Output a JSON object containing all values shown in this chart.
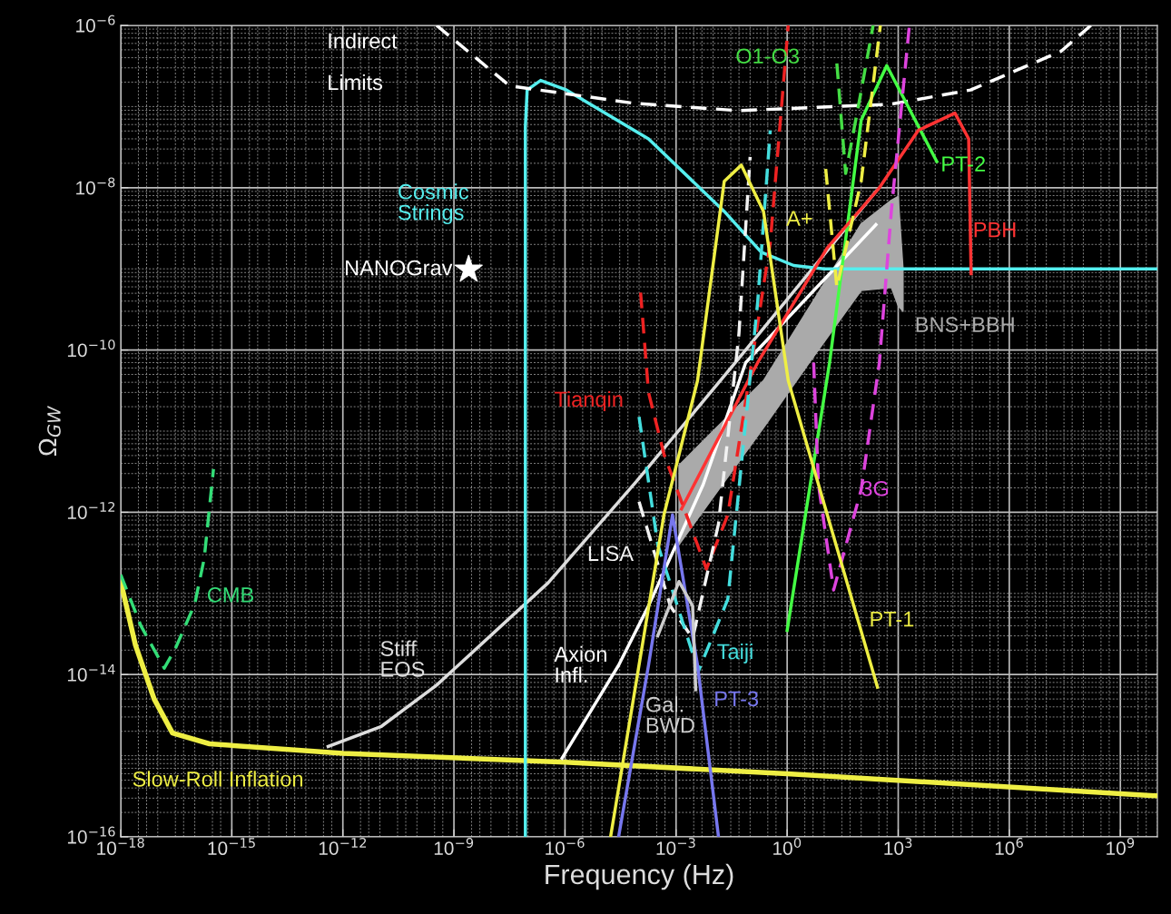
{
  "chart_data": {
    "type": "line",
    "xlabel": "Frequency (Hz)",
    "ylabel": "Ω$_{GW}$",
    "log": "xy",
    "grid": true,
    "legend": false,
    "xlim": [
      1e-18,
      10000000000.0
    ],
    "ylim": [
      1e-16,
      1e-06
    ],
    "xticks": [
      {
        "value": 1e-18,
        "label": "10$^{−18}$"
      },
      {
        "value": 1e-15,
        "label": "10$^{−15}$"
      },
      {
        "value": 1e-12,
        "label": "10$^{−12}$"
      },
      {
        "value": 1e-09,
        "label": "10$^{−9}$"
      },
      {
        "value": 1e-06,
        "label": "10$^{−6}$"
      },
      {
        "value": 0.001,
        "label": "10$^{−3}$"
      },
      {
        "value": 1,
        "label": "10$^{0}$"
      },
      {
        "value": 1000.0,
        "label": "10$^{3}$"
      },
      {
        "value": 1000000.0,
        "label": "10$^{6}$"
      },
      {
        "value": 1000000000.0,
        "label": "10$^{9}$"
      }
    ],
    "yticks": [
      {
        "value": 1e-16,
        "label": "10$^{−16}$"
      },
      {
        "value": 1e-14,
        "label": "10$^{−14}$"
      },
      {
        "value": 1e-12,
        "label": "10$^{−12}$"
      },
      {
        "value": 1e-10,
        "label": "10$^{−10}$"
      },
      {
        "value": 1e-08,
        "label": "10$^{−8}$"
      },
      {
        "value": 1e-06,
        "label": "10$^{−6}$"
      }
    ],
    "series": [
      {
        "name": "Slow-Roll Inflation",
        "color": "#eeee44",
        "line_style": "solid",
        "x": [
          1e-18,
          2.5e-18,
          8e-18,
          2.5e-17,
          2.5e-16,
          1e-12,
          1e-06,
          1,
          10000000000.0
        ],
        "values": [
          1.4e-13,
          2.3e-14,
          5e-15,
          1.9e-15,
          1.4e-15,
          1.07e-15,
          8.3e-16,
          6e-16,
          3.2e-16
        ]
      },
      {
        "name": "CMB",
        "color": "#33dd77",
        "line_style": "dashed",
        "x": [
          1e-18,
          3.5e-18,
          1.5e-17,
          3e-17,
          1e-16,
          1.8e-16,
          3.2e-16
        ],
        "values": [
          1.7e-13,
          4e-14,
          1.2e-14,
          2.1e-14,
          7.4e-14,
          2.7e-13,
          3.4e-12
        ]
      },
      {
        "name": "Stiff EOS",
        "color": "#dddddd",
        "line_style": "solid",
        "x": [
          4e-13,
          1.1e-11,
          3.4e-10,
          3.5e-07,
          8.5e-05,
          0.04,
          250
        ],
        "values": [
          1.3e-15,
          2.3e-15,
          7.4e-15,
          1.35e-13,
          2.4e-12,
          7e-11,
          9e-09
        ]
      },
      {
        "name": "Axion Infl.",
        "color": "#ffffff",
        "line_style": "solid",
        "x": [
          8.3e-07,
          2.8e-05,
          0.00018,
          0.0054,
          0.076,
          250
        ],
        "values": [
          9.3e-16,
          1.3e-14,
          7e-14,
          2.2e-12,
          7e-11,
          3.5e-09
        ]
      },
      {
        "name": "Cosmic Strings",
        "color": "#55eeee",
        "line_style": "solid",
        "x": [
          8.5e-08,
          8.5e-08,
          9.5e-08,
          2.2e-07,
          1.1e-06,
          0.00018,
          0.02,
          0.2,
          1.5,
          10,
          10000000000.0
        ],
        "values": [
          1e-16,
          5.6e-08,
          1.6e-07,
          2.1e-07,
          1.6e-07,
          4e-08,
          5.1e-09,
          1.6e-09,
          1.1e-09,
          1e-09,
          1e-09
        ]
      },
      {
        "name": "Indirect Limits",
        "color": "#ffffff",
        "line_style": "dashed",
        "x": [
          3.4e-10,
          3.2e-08,
          7e-05,
          0.05,
          650,
          90000.0,
          25000000.0,
          160000000.0
        ],
        "values": [
          1e-06,
          1.8e-07,
          1.1e-07,
          8.9e-08,
          1.07e-07,
          1.6e-07,
          4.8e-07,
          1e-06
        ]
      },
      {
        "name": "O1-O3",
        "color": "#44dd44",
        "line_style": "dashed",
        "x": [
          22,
          38,
          90,
          210
        ],
        "values": [
          3.4e-07,
          1.5e-08,
          1.2e-07,
          1e-06
        ]
      },
      {
        "name": "PT-2",
        "color": "#44ff44",
        "line_style": "solid",
        "x": [
          1,
          14,
          100,
          490,
          11000.0
        ],
        "values": [
          3.5e-14,
          7e-11,
          6.8e-08,
          3.2e-07,
          2.1e-08
        ]
      },
      {
        "name": "PBH",
        "color": "#ff3333",
        "line_style": "solid",
        "x": [
          0.0014,
          0.16,
          12,
          310,
          3500,
          34000.0,
          80000.0,
          93000.0
        ],
        "values": [
          1.1e-12,
          7e-11,
          1.8e-09,
          1e-08,
          5.1e-08,
          8.3e-08,
          4e-08,
          8.7e-10
        ]
      },
      {
        "name": "Tianqin",
        "color": "#ee2222",
        "line_style": "dashed",
        "x": [
          0.00011,
          0.00018,
          0.00047,
          0.0066,
          0.025,
          0.11,
          0.35,
          1.07
        ],
        "values": [
          5.1e-10,
          3e-11,
          5.2e-12,
          2e-13,
          9.3e-13,
          7e-11,
          2.1e-09,
          1e-06
        ]
      },
      {
        "name": "LISA",
        "color": "#f2f2f2",
        "line_style": "dashed",
        "x": [
          0.0001,
          0.0007,
          0.0028,
          0.014,
          0.05,
          0.1
        ],
        "values": [
          1.35e-12,
          7e-14,
          2.8e-14,
          7.2e-13,
          1.6e-10,
          2.4e-08
        ]
      },
      {
        "name": "Taiji",
        "color": "#44dddd",
        "line_style": "dashed",
        "x": [
          0.0001,
          0.00032,
          0.004,
          0.025,
          0.16,
          0.35
        ],
        "values": [
          1.5e-11,
          4e-13,
          1.1e-14,
          8.5e-14,
          3.9e-10,
          5.1e-08
        ]
      },
      {
        "name": "A+",
        "color": "#eeee44",
        "line_style": "dashed",
        "x": [
          11,
          22,
          100,
          330
        ],
        "values": [
          1.7e-08,
          5.9e-10,
          1.2e-08,
          1e-06
        ]
      },
      {
        "name": "3G",
        "color": "#dd44dd",
        "line_style": "dashed",
        "x": [
          5.2,
          7,
          18,
          100,
          310,
          650,
          2000
        ],
        "values": [
          7e-11,
          2.2e-12,
          1.1e-13,
          1.9e-12,
          7e-11,
          5.1e-09,
          1e-06
        ]
      },
      {
        "name": "PT-1",
        "color": "#eeee44",
        "line_style": "solid",
        "x": [
          1.7e-05,
          0.00047,
          0.0038,
          0.02,
          0.058,
          0.23,
          1.07,
          275
        ],
        "values": [
          1e-16,
          9.3e-13,
          4.2e-11,
          1.2e-08,
          1.9e-08,
          5.1e-09,
          4.2e-11,
          7e-15
        ]
      },
      {
        "name": "PT-3",
        "color": "#7777ee",
        "line_style": "solid",
        "x": [
          2.8e-05,
          0.00018,
          0.0008,
          0.0038,
          0.014
        ],
        "values": [
          1e-16,
          1.3e-14,
          9.3e-13,
          1.3e-14,
          1e-16
        ]
      },
      {
        "name": "Gal. BWD",
        "color": "#cccccc",
        "line_style": "solid",
        "x": [
          0.00032,
          0.0012,
          0.0028,
          0.0034
        ],
        "values": [
          3e-14,
          1.4e-13,
          7e-14,
          6.5e-15
        ]
      },
      {
        "name": "BNS+BBH",
        "type": "line",
        "color": "#aaaaaa",
        "x": [
          0.0012,
          0.23,
          4,
          100,
          650,
          1000,
          1350
        ],
        "values": [
          null,
          null,
          null,
          null,
          null,
          null,
          null
        ],
        "lower": [
          4e-13,
          1.1e-11,
          7e-11,
          5.4e-10,
          5.9e-10,
          3.5e-10,
          3e-10
        ],
        "upper": [
          3.8e-12,
          4.2e-11,
          3.4e-10,
          3.6e-09,
          7e-09,
          7.8e-09,
          1e-09
        ]
      },
      {
        "name": "NANOGrav",
        "type": "scatter",
        "marker": "star",
        "color": "#ffffff",
        "x": [
          2.5e-09
        ],
        "values": [
          9.8e-10
        ]
      }
    ]
  }
}
